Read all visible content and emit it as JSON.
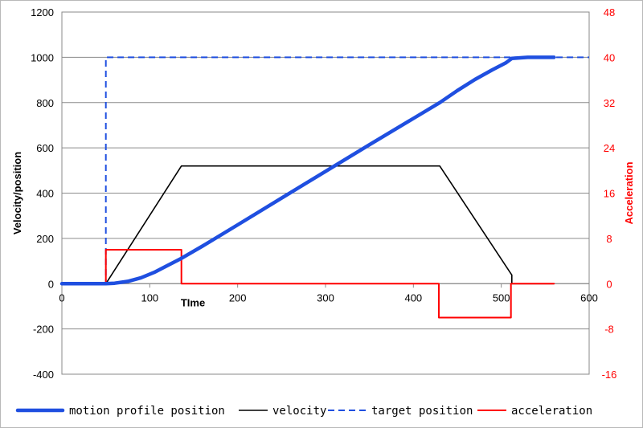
{
  "chart_data": {
    "type": "line",
    "title": "",
    "xlabel": "TIme",
    "ylabel_left": "Velocity/position",
    "ylabel_right": "Acceleration",
    "xlim": [
      0,
      600
    ],
    "ylim_left": [
      -400,
      1200
    ],
    "ylim_right": [
      -16,
      48
    ],
    "x_ticks": [
      "0",
      "100",
      "200",
      "300",
      "400",
      "500",
      "600"
    ],
    "y_left_ticks": [
      "-400",
      "-200",
      "0",
      "200",
      "400",
      "600",
      "800",
      "1000",
      "1200"
    ],
    "y_right_ticks": [
      "-16",
      "-8",
      "0",
      "8",
      "16",
      "24",
      "32",
      "40",
      "48"
    ],
    "grid": "horizontal",
    "legend_position": "bottom",
    "series": [
      {
        "name": "motion profile position",
        "axis": "left",
        "color": "#1f4fe0",
        "style": "thick",
        "x": [
          0,
          50,
          60,
          75,
          90,
          105,
          120,
          136,
          160,
          200,
          250,
          300,
          350,
          400,
          430,
          450,
          470,
          490,
          505,
          512,
          530,
          560
        ],
        "y": [
          0,
          0,
          2,
          10,
          26,
          50,
          80,
          112,
          166,
          260,
          378,
          496,
          614,
          730,
          800,
          853,
          902,
          945,
          975,
          995,
          1000,
          1000
        ]
      },
      {
        "name": "velocity",
        "axis": "left",
        "color": "#000000",
        "style": "solid",
        "x": [
          0,
          50,
          136,
          430,
          512,
          512,
          520,
          560
        ],
        "y": [
          0,
          0,
          520,
          520,
          38,
          0,
          0,
          0
        ]
      },
      {
        "name": "target position",
        "axis": "left",
        "color": "#1f4fe0",
        "style": "dashed",
        "x": [
          0,
          50,
          50,
          600
        ],
        "y": [
          0,
          0,
          1000,
          1000
        ]
      },
      {
        "name": "acceleration",
        "axis": "right",
        "color": "#ff0000",
        "style": "solid",
        "x": [
          0,
          50,
          50,
          136,
          136,
          429,
          429,
          511,
          511,
          560
        ],
        "y": [
          0,
          0,
          6,
          6,
          0,
          0,
          -6,
          -6,
          0,
          0
        ]
      }
    ]
  }
}
